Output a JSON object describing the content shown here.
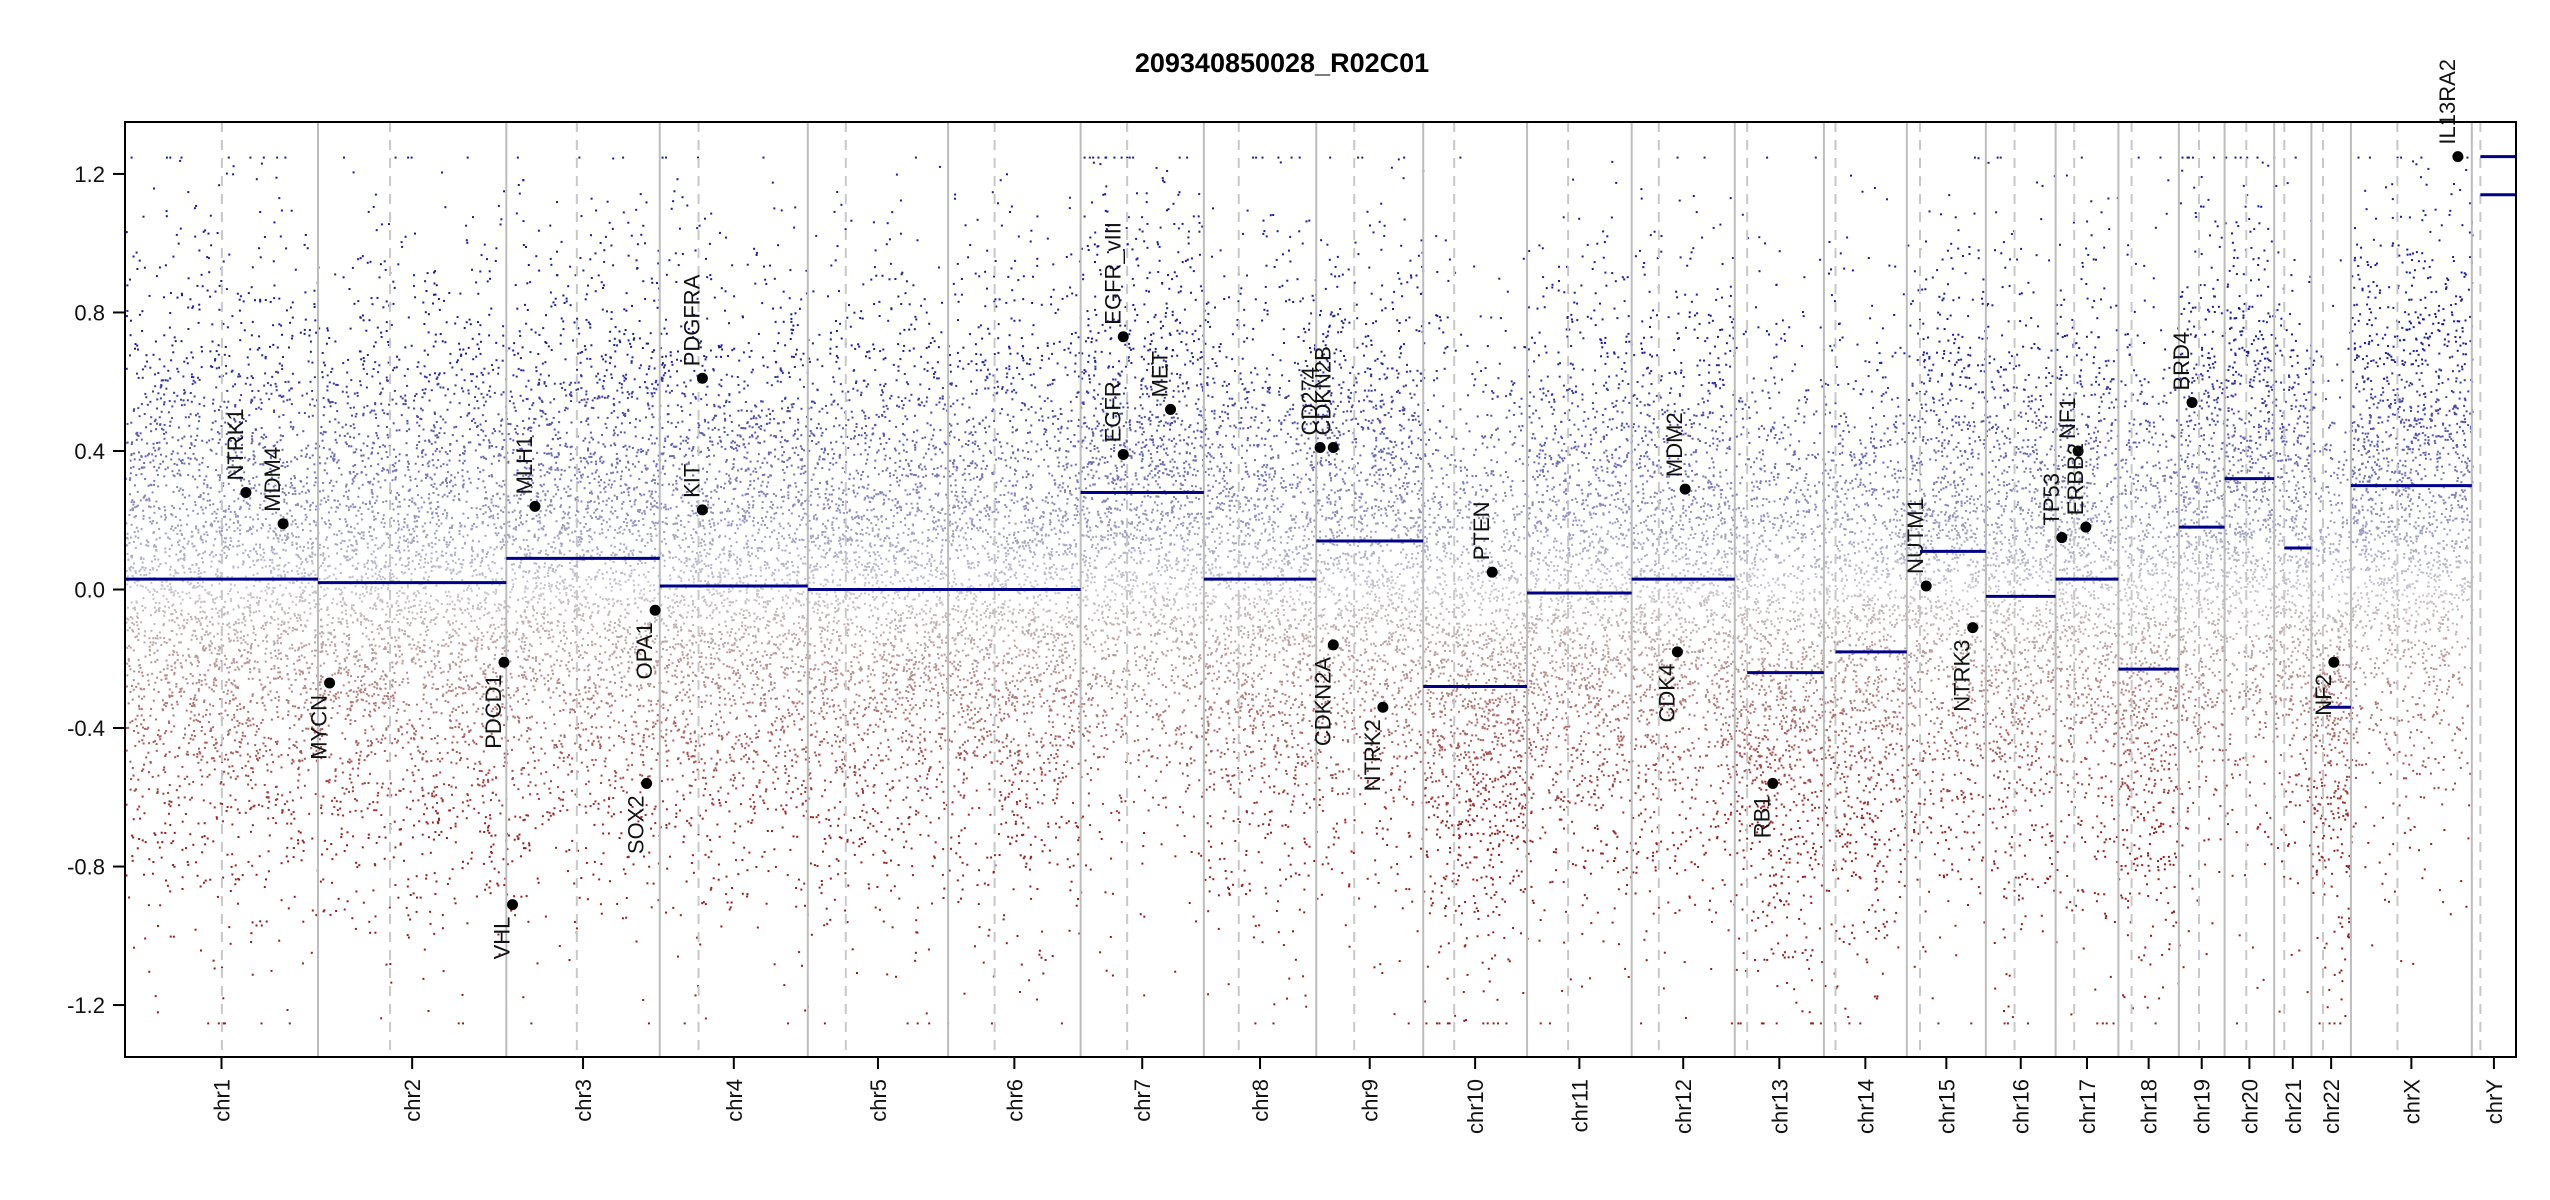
{
  "chart_data": {
    "type": "scatter",
    "title": "209340850028_R02C01",
    "xlabel": "",
    "ylabel": "",
    "ylim": [
      -1.35,
      1.35
    ],
    "y_ticks": [
      -1.2,
      -0.8,
      -0.4,
      0.0,
      0.4,
      0.8,
      1.2
    ],
    "y_tick_labels": [
      "-1.2",
      "-0.8",
      "-0.4",
      "0.0",
      "0.4",
      "0.8",
      "1.2"
    ],
    "grid": false,
    "legend": "none",
    "colors": {
      "gain_points": "#1a1aa8",
      "loss_points": "#9b1b1b",
      "neutral_points": "#bdbdbd",
      "segment": "#00008b",
      "chrom_border": "#bdbdbd",
      "centromere": "#c8c8c8",
      "gene_marker": "#000000"
    },
    "chromosomes": [
      {
        "name": "chr1",
        "start": 0,
        "end": 249,
        "centromere": 125
      },
      {
        "name": "chr2",
        "start": 249,
        "end": 492,
        "centromere": 342
      },
      {
        "name": "chr3",
        "start": 492,
        "end": 690,
        "centromere": 583
      },
      {
        "name": "chr4",
        "start": 690,
        "end": 881,
        "centromere": 740
      },
      {
        "name": "chr5",
        "start": 881,
        "end": 1062,
        "centromere": 930
      },
      {
        "name": "chr6",
        "start": 1062,
        "end": 1233,
        "centromere": 1122
      },
      {
        "name": "chr7",
        "start": 1233,
        "end": 1392,
        "centromere": 1293
      },
      {
        "name": "chr8",
        "start": 1392,
        "end": 1537,
        "centromere": 1437
      },
      {
        "name": "chr9",
        "start": 1537,
        "end": 1675,
        "centromere": 1586
      },
      {
        "name": "chr10",
        "start": 1675,
        "end": 1809,
        "centromere": 1715
      },
      {
        "name": "chr11",
        "start": 1809,
        "end": 1944,
        "centromere": 1862
      },
      {
        "name": "chr12",
        "start": 1944,
        "end": 2077,
        "centromere": 1979
      },
      {
        "name": "chr13",
        "start": 2077,
        "end": 2192,
        "centromere": 2093
      },
      {
        "name": "chr14",
        "start": 2192,
        "end": 2299,
        "centromere": 2207
      },
      {
        "name": "chr15",
        "start": 2299,
        "end": 2401,
        "centromere": 2316
      },
      {
        "name": "chr16",
        "start": 2401,
        "end": 2491,
        "centromere": 2438
      },
      {
        "name": "chr17",
        "start": 2491,
        "end": 2572,
        "centromere": 2515
      },
      {
        "name": "chr18",
        "start": 2572,
        "end": 2650,
        "centromere": 2589
      },
      {
        "name": "chr19",
        "start": 2650,
        "end": 2709,
        "centromere": 2676
      },
      {
        "name": "chr20",
        "start": 2709,
        "end": 2773,
        "centromere": 2737
      },
      {
        "name": "chr21",
        "start": 2773,
        "end": 2821,
        "centromere": 2786
      },
      {
        "name": "chr22",
        "start": 2821,
        "end": 2872,
        "centromere": 2836
      },
      {
        "name": "chrX",
        "start": 2872,
        "end": 3028,
        "centromere": 2932
      },
      {
        "name": "chrY",
        "start": 3028,
        "end": 3085,
        "centromere": 3039
      }
    ],
    "segments": [
      {
        "chrom": "chr1",
        "start": 0,
        "end": 249,
        "value": 0.03
      },
      {
        "chrom": "chr2",
        "start": 249,
        "end": 492,
        "value": 0.02
      },
      {
        "chrom": "chr3",
        "start": 492,
        "end": 690,
        "value": 0.09
      },
      {
        "chrom": "chr4",
        "start": 690,
        "end": 881,
        "value": 0.01
      },
      {
        "chrom": "chr5",
        "start": 881,
        "end": 1062,
        "value": 0.0
      },
      {
        "chrom": "chr6",
        "start": 1062,
        "end": 1233,
        "value": 0.0
      },
      {
        "chrom": "chr7",
        "start": 1233,
        "end": 1392,
        "value": 0.28
      },
      {
        "chrom": "chr8",
        "start": 1392,
        "end": 1537,
        "value": 0.03
      },
      {
        "chrom": "chr9",
        "start": 1537,
        "end": 1675,
        "value": 0.14
      },
      {
        "chrom": "chr10",
        "start": 1675,
        "end": 1809,
        "value": -0.28
      },
      {
        "chrom": "chr11",
        "start": 1809,
        "end": 1944,
        "value": -0.01
      },
      {
        "chrom": "chr12",
        "start": 1944,
        "end": 2077,
        "value": 0.03
      },
      {
        "chrom": "chr13",
        "start": 2093,
        "end": 2192,
        "value": -0.24
      },
      {
        "chrom": "chr14",
        "start": 2207,
        "end": 2299,
        "value": -0.18
      },
      {
        "chrom": "chr15",
        "start": 2316,
        "end": 2401,
        "value": 0.11
      },
      {
        "chrom": "chr16",
        "start": 2401,
        "end": 2491,
        "value": -0.02
      },
      {
        "chrom": "chr17",
        "start": 2491,
        "end": 2572,
        "value": 0.03
      },
      {
        "chrom": "chr18",
        "start": 2572,
        "end": 2650,
        "value": -0.23
      },
      {
        "chrom": "chr19",
        "start": 2650,
        "end": 2709,
        "value": 0.18
      },
      {
        "chrom": "chr20",
        "start": 2709,
        "end": 2773,
        "value": 0.32
      },
      {
        "chrom": "chr21",
        "start": 2786,
        "end": 2821,
        "value": 0.12
      },
      {
        "chrom": "chr22",
        "start": 2836,
        "end": 2872,
        "value": -0.34
      },
      {
        "chrom": "chrX",
        "start": 2872,
        "end": 3028,
        "value": 0.3
      },
      {
        "chrom": "chrY",
        "start": 3039,
        "end": 3085,
        "value": 1.25
      },
      {
        "chrom": "chrY",
        "start": 3039,
        "end": 3085,
        "value": 1.14
      }
    ],
    "genes": [
      {
        "name": "NTRK1",
        "pos": 156,
        "value": 0.28
      },
      {
        "name": "MDM4",
        "pos": 204,
        "value": 0.19
      },
      {
        "name": "MYCN",
        "pos": 264,
        "value": -0.27
      },
      {
        "name": "PDCD1",
        "pos": 489,
        "value": -0.21
      },
      {
        "name": "VHL",
        "pos": 500,
        "value": -0.91
      },
      {
        "name": "MLH1",
        "pos": 529,
        "value": 0.24
      },
      {
        "name": "SOX2",
        "pos": 673,
        "value": -0.56
      },
      {
        "name": "OPA1",
        "pos": 684,
        "value": -0.06
      },
      {
        "name": "KIT",
        "pos": 745,
        "value": 0.23
      },
      {
        "name": "PDGFRA",
        "pos": 745,
        "value": 0.61
      },
      {
        "name": "EGFR",
        "pos": 1288,
        "value": 0.39
      },
      {
        "name": "EGFR_vIII",
        "pos": 1288,
        "value": 0.73
      },
      {
        "name": "MET",
        "pos": 1349,
        "value": 0.52
      },
      {
        "name": "CD274",
        "pos": 1542,
        "value": 0.41
      },
      {
        "name": "CDKN2B",
        "pos": 1559,
        "value": 0.41
      },
      {
        "name": "CDKN2A",
        "pos": 1559,
        "value": -0.16
      },
      {
        "name": "NTRK2",
        "pos": 1623,
        "value": -0.34
      },
      {
        "name": "PTEN",
        "pos": 1764,
        "value": 0.05
      },
      {
        "name": "MDM2",
        "pos": 2013,
        "value": 0.29
      },
      {
        "name": "CDK4",
        "pos": 2003,
        "value": -0.18
      },
      {
        "name": "RB1",
        "pos": 2126,
        "value": -0.56
      },
      {
        "name": "NUTM1",
        "pos": 2324,
        "value": 0.01
      },
      {
        "name": "NTRK3",
        "pos": 2384,
        "value": -0.11
      },
      {
        "name": "TP53",
        "pos": 2499,
        "value": 0.15
      },
      {
        "name": "NF1",
        "pos": 2520,
        "value": 0.4
      },
      {
        "name": "ERBB2",
        "pos": 2530,
        "value": 0.18
      },
      {
        "name": "BRD4",
        "pos": 2667,
        "value": 0.54
      },
      {
        "name": "NF2",
        "pos": 2850,
        "value": -0.21
      },
      {
        "name": "IL13RA2",
        "pos": 3010,
        "value": 1.25
      }
    ]
  }
}
